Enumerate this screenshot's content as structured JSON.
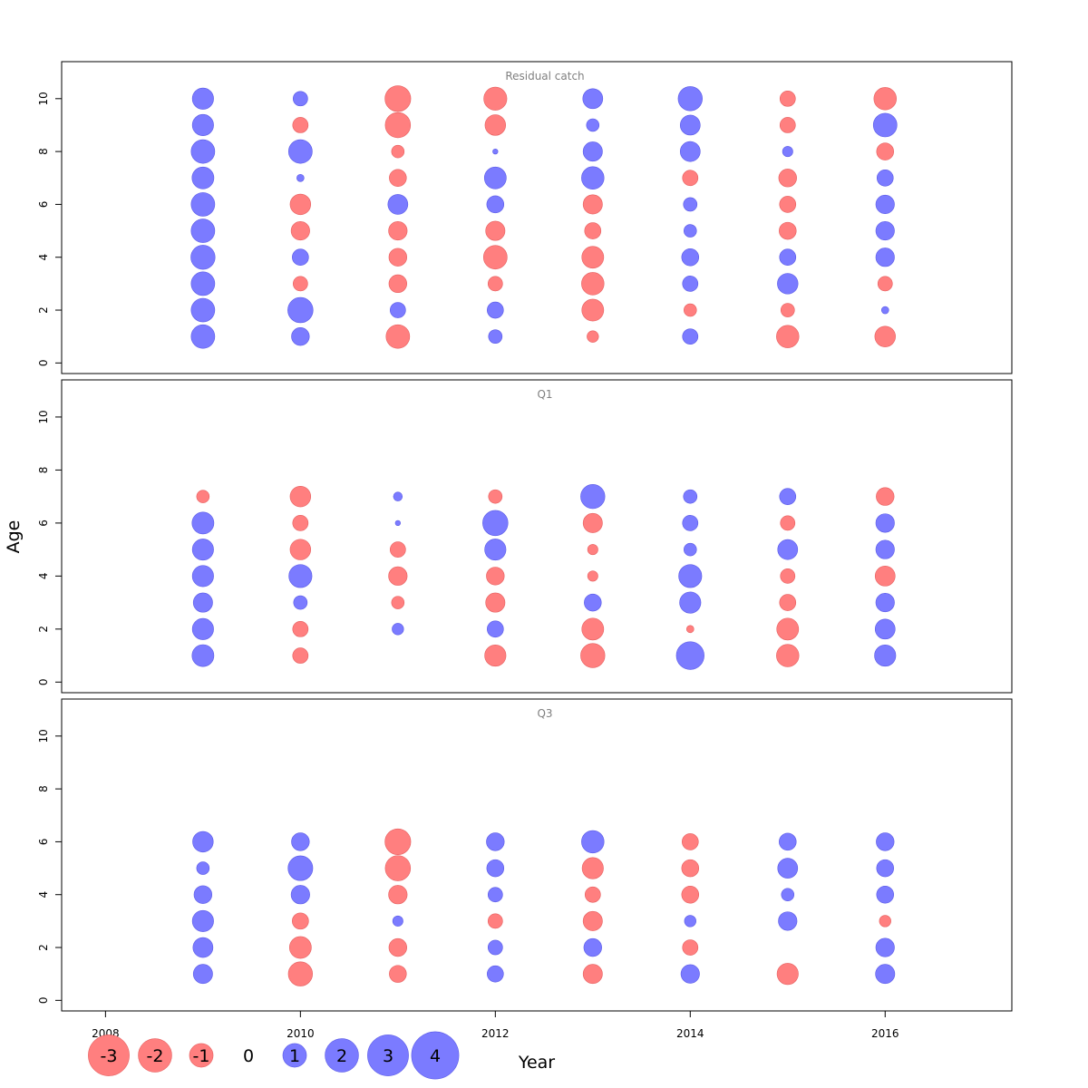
{
  "chart_data": {
    "type": "bubble",
    "xlabel": "Year",
    "ylabel": "Age",
    "xlim": [
      2007.55,
      2017.3
    ],
    "ylim": [
      -0.4,
      11.4
    ],
    "x_ticks": [
      2008,
      2010,
      2012,
      2014,
      2016
    ],
    "y_ticks": [
      0,
      2,
      4,
      6,
      8,
      10
    ],
    "years": [
      2009,
      2010,
      2011,
      2012,
      2013,
      2014,
      2015,
      2016
    ],
    "colors": {
      "positive": "#7b7bff",
      "negative": "#ff7f7f"
    },
    "panels": [
      {
        "title": "Residual catch",
        "ages": [
          1,
          2,
          3,
          4,
          5,
          6,
          7,
          8,
          9,
          10
        ],
        "residuals": [
          [
            2.1,
            2.1,
            2.1,
            2.2,
            2.1,
            2.1,
            1.8,
            2.1,
            1.7,
            1.7
          ],
          [
            1.2,
            2.4,
            -0.8,
            1.0,
            -1.3,
            -1.6,
            0.2,
            2.1,
            -0.9,
            0.8
          ],
          [
            -2.1,
            0.9,
            -1.2,
            -1.2,
            -1.3,
            1.5,
            -1.1,
            -0.6,
            -2.4,
            -2.5
          ],
          [
            0.7,
            1.0,
            -0.8,
            -2.1,
            -1.4,
            1.1,
            1.8,
            0.1,
            -1.6,
            -2.0
          ],
          [
            -0.5,
            -1.8,
            -1.9,
            -1.8,
            -1.0,
            -1.4,
            1.9,
            1.4,
            0.6,
            1.5
          ],
          [
            0.9,
            -0.6,
            0.9,
            1.1,
            0.6,
            0.7,
            -0.9,
            1.5,
            1.5,
            2.2
          ],
          [
            -1.9,
            -0.7,
            1.6,
            1.0,
            -1.1,
            -1.0,
            -1.2,
            0.4,
            -0.9,
            -0.9
          ],
          [
            -1.6,
            0.2,
            -0.8,
            1.3,
            1.3,
            1.3,
            1.0,
            -1.1,
            2.1,
            -1.9
          ]
        ]
      },
      {
        "title": "Q1",
        "ages": [
          1,
          2,
          3,
          4,
          5,
          6,
          7
        ],
        "residuals": [
          [
            1.8,
            1.7,
            1.4,
            1.7,
            1.7,
            1.8,
            -0.6
          ],
          [
            -0.9,
            -0.9,
            0.7,
            2.0,
            -1.6,
            -0.9,
            -1.6
          ],
          [
            null,
            0.5,
            -0.6,
            -1.3,
            -0.9,
            0.1,
            0.3
          ],
          [
            -1.7,
            1.0,
            -1.4,
            -1.2,
            1.7,
            2.4,
            -0.7
          ],
          [
            -2.2,
            -1.8,
            1.1,
            -0.4,
            -0.4,
            -1.4,
            2.2
          ],
          [
            2.9,
            -0.2,
            1.7,
            2.0,
            0.6,
            0.9,
            0.7
          ],
          [
            -1.9,
            -1.8,
            -1.0,
            -0.8,
            1.5,
            -0.8,
            1.0
          ],
          [
            1.7,
            1.5,
            1.3,
            -1.5,
            1.3,
            1.3,
            -1.2
          ]
        ]
      },
      {
        "title": "Q3",
        "ages": [
          1,
          2,
          3,
          4,
          5,
          6
        ],
        "residuals": [
          [
            1.4,
            1.5,
            1.7,
            1.2,
            0.6,
            1.6
          ],
          [
            -2.2,
            -1.8,
            -1.0,
            1.3,
            2.3,
            1.2
          ],
          [
            -1.1,
            -1.2,
            0.4,
            -1.3,
            -2.4,
            -2.5
          ],
          [
            1.0,
            0.8,
            -0.8,
            0.8,
            1.1,
            1.2
          ],
          [
            -1.4,
            1.2,
            -1.4,
            -0.9,
            -1.7,
            1.9
          ],
          [
            1.3,
            -0.9,
            0.5,
            -1.1,
            -1.1,
            -1.0
          ],
          [
            -1.7,
            0.0,
            1.3,
            0.6,
            1.5,
            1.1
          ],
          [
            1.4,
            1.3,
            -0.5,
            1.1,
            1.1,
            1.2
          ]
        ]
      }
    ],
    "legend": {
      "values": [
        -3,
        -2,
        -1,
        0,
        1,
        2,
        3,
        4
      ],
      "labels": [
        "-3",
        "-2",
        "-1",
        "0",
        "1",
        "2",
        "3",
        "4"
      ]
    }
  }
}
